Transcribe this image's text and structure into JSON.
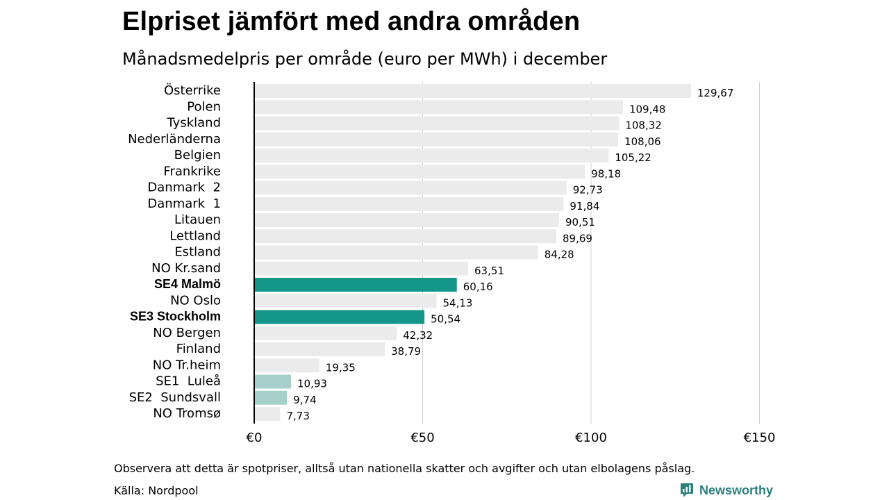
{
  "header": {
    "title": "Elpriset jämfört med andra områden",
    "subtitle": "Månadsmedelpris per område (euro per MWh) i december"
  },
  "chart_data": {
    "type": "bar",
    "orientation": "horizontal",
    "categories": [
      "Österrike",
      "Polen",
      "Tyskland",
      "Nederländerna",
      "Belgien",
      "Frankrike",
      "Danmark  2",
      "Danmark  1",
      "Litauen",
      "Lettland",
      "Estland",
      "NO Kr.sand",
      "SE4 Malmö",
      "NO Oslo",
      "SE3 Stockholm",
      "NO Bergen",
      "Finland",
      "NO Tr.heim",
      "SE1  Luleå",
      "SE2  Sundsvall",
      "NO Tromsø"
    ],
    "values": [
      129.67,
      109.48,
      108.32,
      108.06,
      105.22,
      98.18,
      92.73,
      91.84,
      90.51,
      89.69,
      84.28,
      63.51,
      60.16,
      54.13,
      50.54,
      42.32,
      38.79,
      19.35,
      10.93,
      9.74,
      7.73
    ],
    "value_labels": [
      "129,67",
      "109,48",
      "108,32",
      "108,06",
      "105,22",
      "98,18",
      "92,73",
      "91,84",
      "90,51",
      "89,69",
      "84,28",
      "63,51",
      "60,16",
      "54,13",
      "50,54",
      "42,32",
      "38,79",
      "19,35",
      "10,93",
      "9,74",
      "7,73"
    ],
    "highlight": [
      "none",
      "none",
      "none",
      "none",
      "none",
      "none",
      "none",
      "none",
      "none",
      "none",
      "none",
      "none",
      "strong",
      "none",
      "strong",
      "none",
      "none",
      "none",
      "light",
      "light",
      "none"
    ],
    "bold_labels": [
      "SE4 Malmö",
      "SE3 Stockholm"
    ],
    "xlim": [
      0,
      150
    ],
    "xticks": [
      0,
      50,
      100,
      150
    ],
    "xtick_labels": [
      "€0",
      "€50",
      "€100",
      "€150"
    ],
    "grid": "vertical",
    "xlabel": "",
    "ylabel": ""
  },
  "footer": {
    "note": "Observera att detta är spotpriser, alltså utan nationella skatter och avgifter och utan elbolagens påslag.",
    "source": "Källa: Nordpool",
    "brand": "Newsworthy"
  },
  "colors": {
    "bar_default": "#ebebeb",
    "bar_highlight": "#149688",
    "bar_light": "#a6d0c9",
    "grid": "#d0d0d0",
    "axis": "#000000",
    "brand": "#2a7f7a"
  },
  "icons": {
    "brand_logo": "newsworthy-logo-icon"
  }
}
